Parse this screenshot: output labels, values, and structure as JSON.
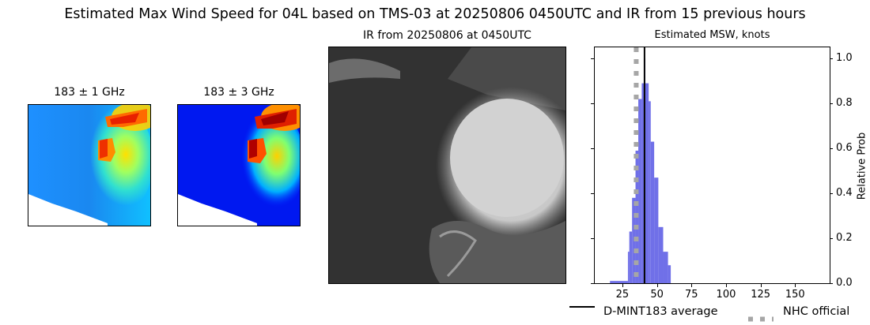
{
  "figure": {
    "suptitle": "Estimated Max Wind Speed for 04L based on TMS-03 at 20250806 0450UTC and IR from 15 previous hours"
  },
  "panels": {
    "mw1": {
      "title": "183 ± 1 GHz",
      "colormap": "jet"
    },
    "mw3": {
      "title": "183 ± 3 GHz",
      "colormap": "jet"
    },
    "ir": {
      "title": "IR from 20250806 at 0450UTC",
      "colormap": "gray"
    },
    "hist": {
      "title": "Estimated MSW, knots",
      "ylabel": "Relative Prob"
    }
  },
  "legend": {
    "items": [
      {
        "label": "D-MINT183 average",
        "style": "solid",
        "color": "#000000"
      },
      {
        "label": "NHC official",
        "style": "dotted",
        "color": "#a6a6a6"
      }
    ]
  },
  "colors": {
    "bar": "#7070e8",
    "avg_line": "#000000",
    "nhc_line": "#a6a6a6"
  },
  "chart_data": {
    "type": "bar",
    "title": "Estimated MSW, knots",
    "xlabel": "",
    "ylabel": "Relative Prob",
    "xlim": [
      5,
      175
    ],
    "ylim": [
      0,
      1.05
    ],
    "xticks": [
      25,
      50,
      75,
      100,
      125,
      150
    ],
    "yticks": [
      0.0,
      0.2,
      0.4,
      0.6,
      0.8,
      1.0
    ],
    "ytick_labels": [
      "0.0",
      "0.2",
      "0.4",
      "0.6",
      "0.8",
      "1.0"
    ],
    "y_axis_position": "right",
    "bins": [
      {
        "x0": 16,
        "x1": 29,
        "value": 0.01
      },
      {
        "x0": 29,
        "x1": 30,
        "value": 0.14
      },
      {
        "x0": 30,
        "x1": 32,
        "value": 0.23
      },
      {
        "x0": 32,
        "x1": 34.5,
        "value": 0.38
      },
      {
        "x0": 34.5,
        "x1": 36.5,
        "value": 0.59
      },
      {
        "x0": 36.5,
        "x1": 39,
        "value": 0.82
      },
      {
        "x0": 39,
        "x1": 40.5,
        "value": 0.89
      },
      {
        "x0": 40.5,
        "x1": 41.5,
        "value": 1.0
      },
      {
        "x0": 41.5,
        "x1": 44,
        "value": 0.89
      },
      {
        "x0": 44,
        "x1": 45.5,
        "value": 0.81
      },
      {
        "x0": 45.5,
        "x1": 48,
        "value": 0.63
      },
      {
        "x0": 48,
        "x1": 51,
        "value": 0.47
      },
      {
        "x0": 51,
        "x1": 54.5,
        "value": 0.25
      },
      {
        "x0": 54.5,
        "x1": 58,
        "value": 0.14
      },
      {
        "x0": 58,
        "x1": 60,
        "value": 0.08
      }
    ],
    "vlines": [
      {
        "name": "D-MINT183 average",
        "x": 41,
        "style": "solid",
        "color": "#000000"
      },
      {
        "name": "NHC official",
        "x": 35,
        "style": "dotted",
        "color": "#a6a6a6"
      }
    ],
    "legend": [
      "D-MINT183 average",
      "NHC official"
    ],
    "legend_position": "below",
    "grid": false
  }
}
